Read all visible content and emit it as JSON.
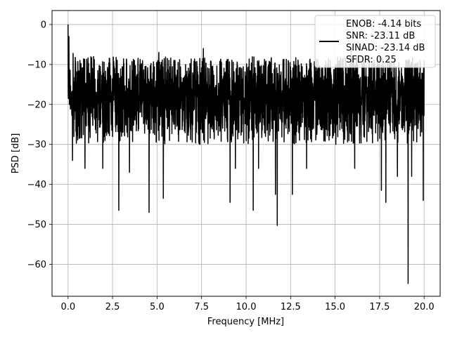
{
  "chart_data": {
    "type": "line",
    "title": "",
    "xlabel": "Frequency [MHz]",
    "ylabel": "PSD [dB]",
    "xlim": [
      -0.9,
      20.9
    ],
    "ylim": [
      -68,
      3.5
    ],
    "xticks": [
      0.0,
      2.5,
      5.0,
      7.5,
      10.0,
      12.5,
      15.0,
      17.5,
      20.0
    ],
    "xtick_labels": [
      "0.0",
      "2.5",
      "5.0",
      "7.5",
      "10.0",
      "12.5",
      "15.0",
      "17.5",
      "20.0"
    ],
    "yticks": [
      0,
      -10,
      -20,
      -30,
      -40,
      -50,
      -60
    ],
    "ytick_labels": [
      "0",
      "−10",
      "−20",
      "−30",
      "−40",
      "−50",
      "−60"
    ],
    "grid": true,
    "legend_position": "top-right",
    "legend_lines": [
      "ENOB: -4.14 bits",
      "SNR: -23.11 dB",
      "SINAD: -23.14 dB",
      "SFDR: 0.25"
    ],
    "series": [
      {
        "color": "#000000",
        "x_range": [
          0.0,
          20.0
        ],
        "baseline_db": -18,
        "noise_upper_db": -8,
        "noise_lower_db": -30,
        "dips": [
          {
            "x": 0.25,
            "y": -34
          },
          {
            "x": 0.95,
            "y": -36
          },
          {
            "x": 1.95,
            "y": -36
          },
          {
            "x": 2.85,
            "y": -46.5
          },
          {
            "x": 3.45,
            "y": -37
          },
          {
            "x": 4.55,
            "y": -47
          },
          {
            "x": 5.35,
            "y": -43.5
          },
          {
            "x": 7.6,
            "y": -38
          },
          {
            "x": 9.1,
            "y": -44.5
          },
          {
            "x": 9.4,
            "y": -36
          },
          {
            "x": 10.4,
            "y": -46.5
          },
          {
            "x": 10.7,
            "y": -36
          },
          {
            "x": 11.65,
            "y": -42.5
          },
          {
            "x": 11.75,
            "y": -50.3
          },
          {
            "x": 12.6,
            "y": -42.5
          },
          {
            "x": 13.4,
            "y": -36
          },
          {
            "x": 16.1,
            "y": -36
          },
          {
            "x": 17.6,
            "y": -41.5
          },
          {
            "x": 17.85,
            "y": -44.5
          },
          {
            "x": 18.5,
            "y": -38
          },
          {
            "x": 19.1,
            "y": -64.8
          },
          {
            "x": 19.3,
            "y": -38
          },
          {
            "x": 19.95,
            "y": -44
          }
        ],
        "peaks": [
          {
            "x": 0.0,
            "y": 0
          },
          {
            "x": 0.05,
            "y": -3
          },
          {
            "x": 7.6,
            "y": -6
          },
          {
            "x": 5.1,
            "y": -7
          },
          {
            "x": 15.9,
            "y": -6
          }
        ]
      }
    ]
  }
}
